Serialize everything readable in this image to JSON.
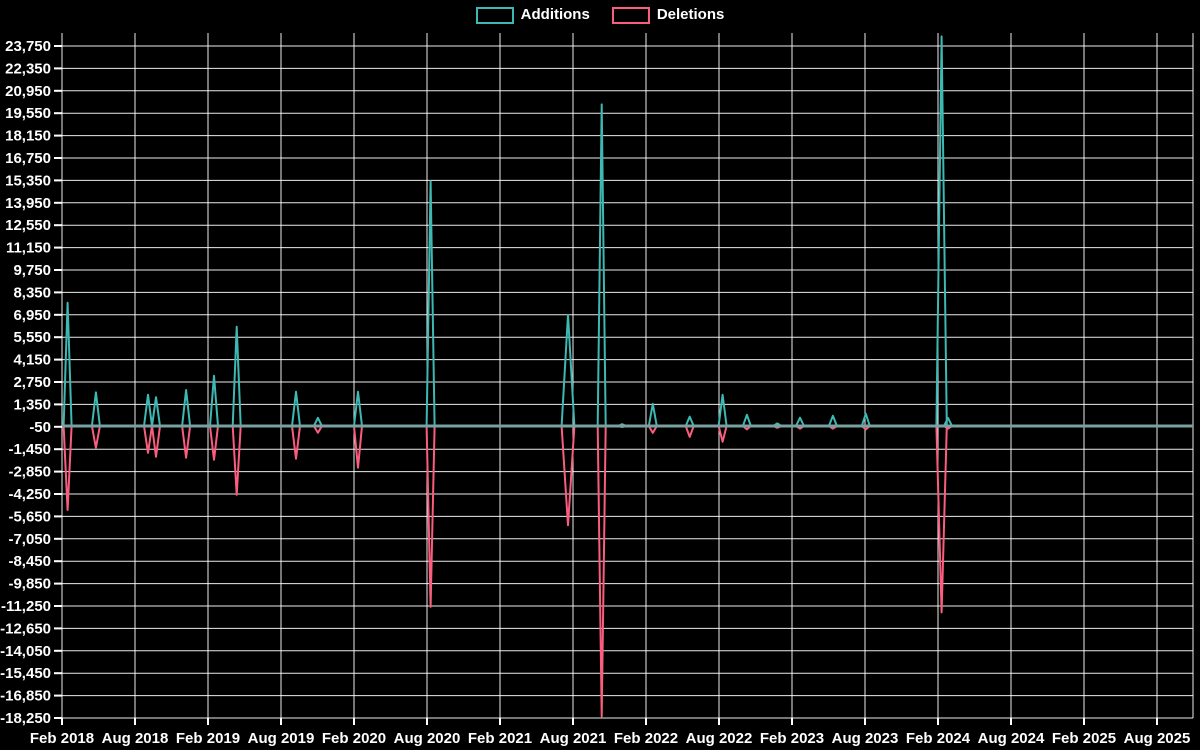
{
  "legend": {
    "additions_label": "Additions",
    "deletions_label": "Deletions"
  },
  "colors": {
    "background": "#000000",
    "text": "#ffffff",
    "grid": "#ffffff",
    "additions": "#3db8b2",
    "deletions": "#fa5d7d",
    "zero_line": "#7aa0a1"
  },
  "chart_data": {
    "type": "line",
    "title": "",
    "xlabel": "",
    "ylabel": "",
    "legend_position": "top-center",
    "grid": true,
    "ylim": [
      -18950,
      24550
    ],
    "y_tick_labels": [
      "23,750",
      "22,350",
      "20,950",
      "19,550",
      "18,150",
      "16,750",
      "15,350",
      "13,950",
      "12,550",
      "11,150",
      "9,750",
      "8,350",
      "6,950",
      "5,550",
      "4,150",
      "2,750",
      "1,350",
      "-50",
      "-1,450",
      "-2,850",
      "-4,250",
      "-5,650",
      "-7,050",
      "-8,450",
      "-9,850",
      "-11,250",
      "-12,650",
      "-14,050",
      "-15,450",
      "-16,850",
      "-18,250"
    ],
    "x_tick_labels": [
      "Feb 2018",
      "Aug 2018",
      "Feb 2019",
      "Aug 2019",
      "Feb 2020",
      "Aug 2020",
      "Feb 2021",
      "Aug 2021",
      "Feb 2022",
      "Aug 2022",
      "Feb 2023",
      "Aug 2023",
      "Feb 2024",
      "Aug 2024",
      "Feb 2025",
      "Aug 2025"
    ],
    "series": [
      {
        "name": "Additions",
        "sign": "positive"
      },
      {
        "name": "Deletions",
        "sign": "negative"
      }
    ],
    "baseline_value": 0,
    "series_start": "2018-02-01",
    "series_end": "2024-03-05",
    "events": [
      {
        "date": "2018-02-15",
        "additions": 7700,
        "deletions": -5250
      },
      {
        "date": "2018-04-25",
        "additions": 2100,
        "deletions": -1360
      },
      {
        "date": "2018-09-03",
        "additions": 1950,
        "deletions": -1675
      },
      {
        "date": "2018-09-23",
        "additions": 1800,
        "deletions": -1925
      },
      {
        "date": "2018-12-07",
        "additions": 2250,
        "deletions": -1990
      },
      {
        "date": "2019-02-16",
        "additions": 3140,
        "deletions": -2110
      },
      {
        "date": "2019-04-12",
        "additions": 6200,
        "deletions": -4300
      },
      {
        "date": "2019-09-08",
        "additions": 2140,
        "deletions": -2050
      },
      {
        "date": "2019-11-02",
        "additions": 510,
        "deletions": -425
      },
      {
        "date": "2020-02-11",
        "additions": 2140,
        "deletions": -2600
      },
      {
        "date": "2020-08-10",
        "additions": 15300,
        "deletions": -11300
      },
      {
        "date": "2021-07-19",
        "additions": 6950,
        "deletions": -6200,
        "w_days": 16
      },
      {
        "date": "2021-10-12",
        "additions": 20100,
        "deletions": -18150
      },
      {
        "date": "2021-12-02",
        "additions": 120,
        "deletions": -60
      },
      {
        "date": "2022-02-18",
        "additions": 1390,
        "deletions": -430
      },
      {
        "date": "2022-05-19",
        "additions": 580,
        "deletions": -680
      },
      {
        "date": "2022-08-10",
        "additions": 1950,
        "deletions": -990
      },
      {
        "date": "2022-10-10",
        "additions": 700,
        "deletions": -210
      },
      {
        "date": "2022-12-25",
        "additions": 160,
        "deletions": -110
      },
      {
        "date": "2023-02-21",
        "additions": 520,
        "deletions": -160
      },
      {
        "date": "2023-05-12",
        "additions": 640,
        "deletions": -160
      },
      {
        "date": "2023-08-03",
        "additions": 770,
        "deletions": -210
      },
      {
        "date": "2024-02-10",
        "additions": 24350,
        "deletions": -11650,
        "w_days": 13
      },
      {
        "date": "2024-02-26",
        "additions": 500,
        "deletions": -160
      }
    ]
  }
}
